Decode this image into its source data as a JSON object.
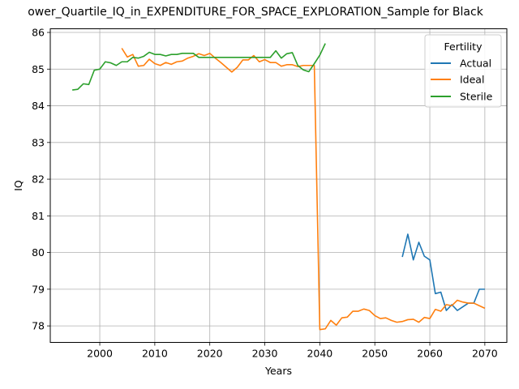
{
  "chart_data": {
    "type": "line",
    "title": "ower_Quartile_IQ_in_EXPENDITURE_FOR_SPACE_EXPLORATION_Sample for Black",
    "xlabel": "Years",
    "ylabel": "IQ",
    "xlim": [
      1991,
      2074
    ],
    "ylim": [
      77.55,
      86.1
    ],
    "xticks": [
      2000,
      2010,
      2020,
      2030,
      2040,
      2050,
      2060,
      2070
    ],
    "yticks": [
      78,
      79,
      80,
      81,
      82,
      83,
      84,
      85,
      86
    ],
    "grid": true,
    "legend": {
      "title": "Fertility",
      "position": "top-right"
    },
    "series": [
      {
        "name": "Actual",
        "color": "#1f77b4",
        "x": [
          2055,
          2056,
          2057,
          2058,
          2059,
          2060,
          2061,
          2062,
          2063,
          2064,
          2065,
          2066,
          2067,
          2068,
          2069,
          2070
        ],
        "y": [
          79.88,
          80.5,
          79.8,
          80.28,
          79.9,
          79.8,
          78.88,
          78.92,
          78.42,
          78.58,
          78.42,
          78.52,
          78.62,
          78.62,
          79.0,
          79.0
        ]
      },
      {
        "name": "Ideal",
        "color": "#ff7f0e",
        "x": [
          2004,
          2005,
          2006,
          2007,
          2008,
          2009,
          2010,
          2011,
          2012,
          2013,
          2014,
          2015,
          2016,
          2017,
          2018,
          2019,
          2020,
          2021,
          2022,
          2023,
          2024,
          2025,
          2026,
          2027,
          2028,
          2029,
          2030,
          2031,
          2032,
          2033,
          2034,
          2035,
          2036,
          2037,
          2038,
          2039,
          2040,
          2041,
          2042,
          2043,
          2044,
          2045,
          2046,
          2047,
          2048,
          2049,
          2050,
          2051,
          2052,
          2053,
          2054,
          2055,
          2056,
          2057,
          2058,
          2059,
          2060,
          2061,
          2062,
          2063,
          2064,
          2065,
          2066,
          2067,
          2068,
          2069,
          2070
        ],
        "y": [
          85.57,
          85.33,
          85.4,
          85.08,
          85.1,
          85.27,
          85.15,
          85.1,
          85.18,
          85.13,
          85.2,
          85.22,
          85.3,
          85.35,
          85.42,
          85.37,
          85.43,
          85.3,
          85.18,
          85.05,
          84.92,
          85.05,
          85.25,
          85.25,
          85.37,
          85.2,
          85.26,
          85.18,
          85.18,
          85.08,
          85.12,
          85.12,
          85.07,
          85.1,
          85.1,
          85.1,
          77.9,
          77.92,
          78.15,
          78.02,
          78.22,
          78.24,
          78.4,
          78.4,
          78.46,
          78.42,
          78.28,
          78.2,
          78.22,
          78.15,
          78.1,
          78.12,
          78.17,
          78.18,
          78.1,
          78.23,
          78.2,
          78.45,
          78.4,
          78.58,
          78.55,
          78.7,
          78.65,
          78.62,
          78.62,
          78.55,
          78.48
        ]
      },
      {
        "name": "Sterile",
        "color": "#2ca02c",
        "x": [
          1995,
          1996,
          1997,
          1998,
          1999,
          2000,
          2001,
          2002,
          2003,
          2004,
          2005,
          2006,
          2007,
          2008,
          2009,
          2010,
          2011,
          2012,
          2013,
          2014,
          2015,
          2016,
          2017,
          2018,
          2019,
          2020,
          2021,
          2022,
          2023,
          2024,
          2025,
          2026,
          2027,
          2028,
          2029,
          2030,
          2031,
          2032,
          2033,
          2034,
          2035,
          2036,
          2037,
          2038,
          2039,
          2040,
          2041
        ],
        "y": [
          84.43,
          84.45,
          84.6,
          84.58,
          84.97,
          85.0,
          85.2,
          85.17,
          85.1,
          85.2,
          85.2,
          85.32,
          85.3,
          85.35,
          85.46,
          85.4,
          85.4,
          85.36,
          85.4,
          85.4,
          85.43,
          85.43,
          85.43,
          85.32,
          85.32,
          85.32,
          85.32,
          85.32,
          85.32,
          85.32,
          85.32,
          85.32,
          85.32,
          85.32,
          85.32,
          85.32,
          85.32,
          85.5,
          85.3,
          85.42,
          85.45,
          85.1,
          84.98,
          84.93,
          85.15,
          85.38,
          85.7
        ]
      }
    ]
  }
}
